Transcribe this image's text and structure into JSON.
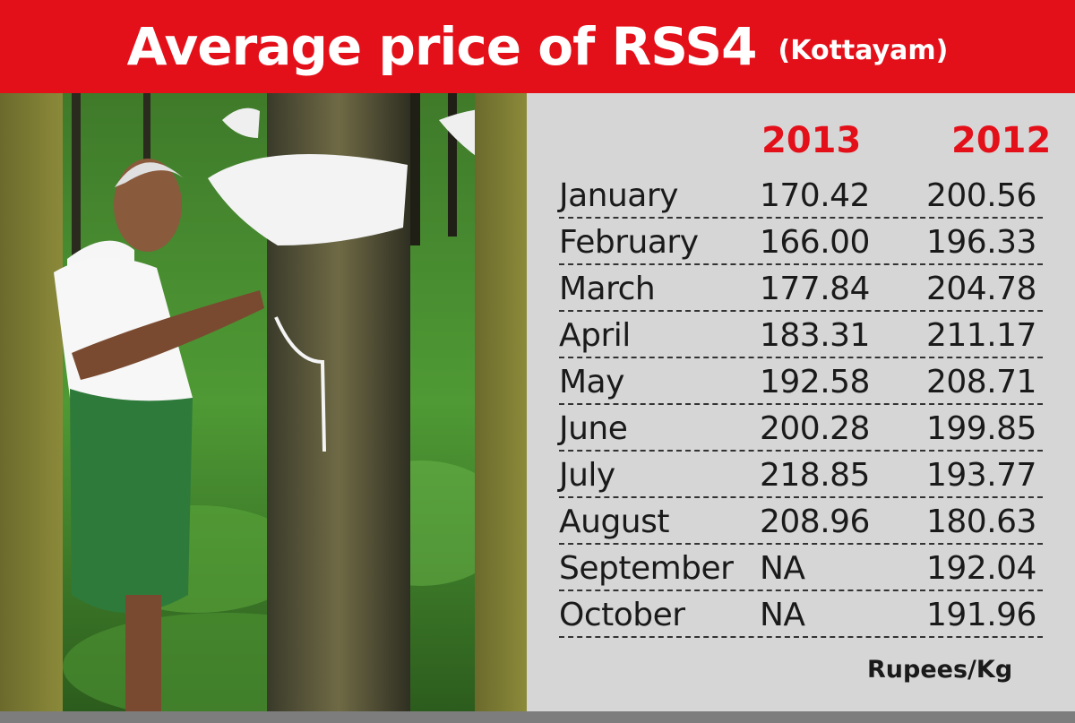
{
  "header": {
    "title": "Average price of RSS4",
    "subtitle": "(Kottayam)"
  },
  "colors": {
    "banner": "#e3101a",
    "panel": "#d6d6d6",
    "year_header": "#e3101a"
  },
  "photo": {
    "subject": "rubber-tapper-photo"
  },
  "chart_data": {
    "type": "table",
    "title": "Average price of RSS4",
    "subtitle": "(Kottayam)",
    "columns": [
      "",
      "2013",
      "2012"
    ],
    "rows": [
      [
        "January",
        "170.42",
        "200.56"
      ],
      [
        "February",
        "166.00",
        "196.33"
      ],
      [
        "March",
        "177.84",
        "204.78"
      ],
      [
        "April",
        "183.31",
        "211.17"
      ],
      [
        "May",
        "192.58",
        "208.71"
      ],
      [
        "June",
        "200.28",
        "199.85"
      ],
      [
        "July",
        "218.85",
        "193.77"
      ],
      [
        "August",
        "208.96",
        "180.63"
      ],
      [
        "September",
        "NA",
        "192.04"
      ],
      [
        "October",
        "NA",
        "191.96"
      ]
    ],
    "unit": "Rupees/Kg"
  }
}
